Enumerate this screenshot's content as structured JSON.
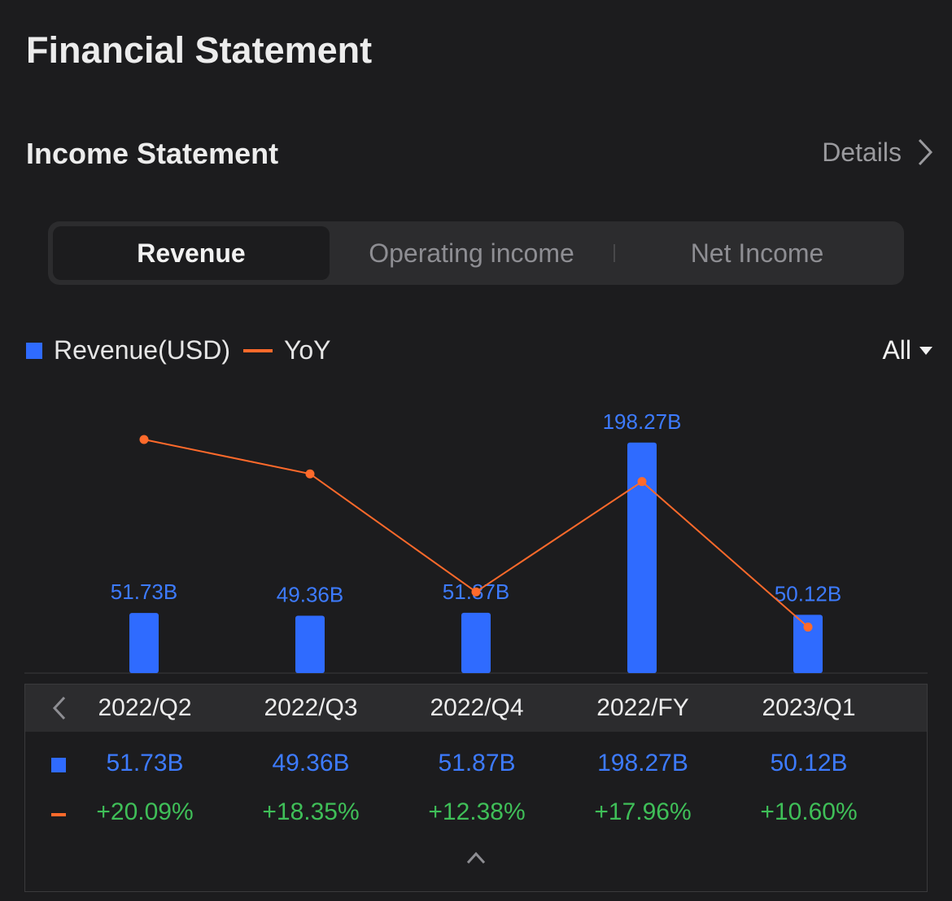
{
  "page": {
    "title": "Financial Statement"
  },
  "section": {
    "title": "Income Statement",
    "details_label": "Details"
  },
  "tabs": [
    {
      "label": "Revenue",
      "active": true
    },
    {
      "label": "Operating income",
      "active": false
    },
    {
      "label": "Net Income",
      "active": false
    }
  ],
  "legend": {
    "bar_label": "Revenue(USD)",
    "line_label": "YoY"
  },
  "range": {
    "selected": "All"
  },
  "colors": {
    "bar": "#2f6bff",
    "line": "#ff6a2b",
    "positive": "#3fbf58",
    "label": "#3d7bff"
  },
  "chart_data": {
    "type": "bar",
    "categories": [
      "2022/Q2",
      "2022/Q3",
      "2022/Q4",
      "2022/FY",
      "2023/Q1"
    ],
    "series": [
      {
        "name": "Revenue(USD)",
        "type": "bar",
        "values": [
          51.73,
          49.36,
          51.87,
          198.27,
          50.12
        ],
        "labels": [
          "51.73B",
          "49.36B",
          "51.87B",
          "198.27B",
          "50.12B"
        ]
      },
      {
        "name": "YoY",
        "type": "line",
        "values": [
          20.09,
          18.35,
          12.38,
          17.96,
          10.6
        ],
        "labels": [
          "+20.09%",
          "+18.35%",
          "+12.38%",
          "+17.96%",
          "+10.60%"
        ]
      }
    ],
    "legend": "top-left",
    "grid": false
  }
}
